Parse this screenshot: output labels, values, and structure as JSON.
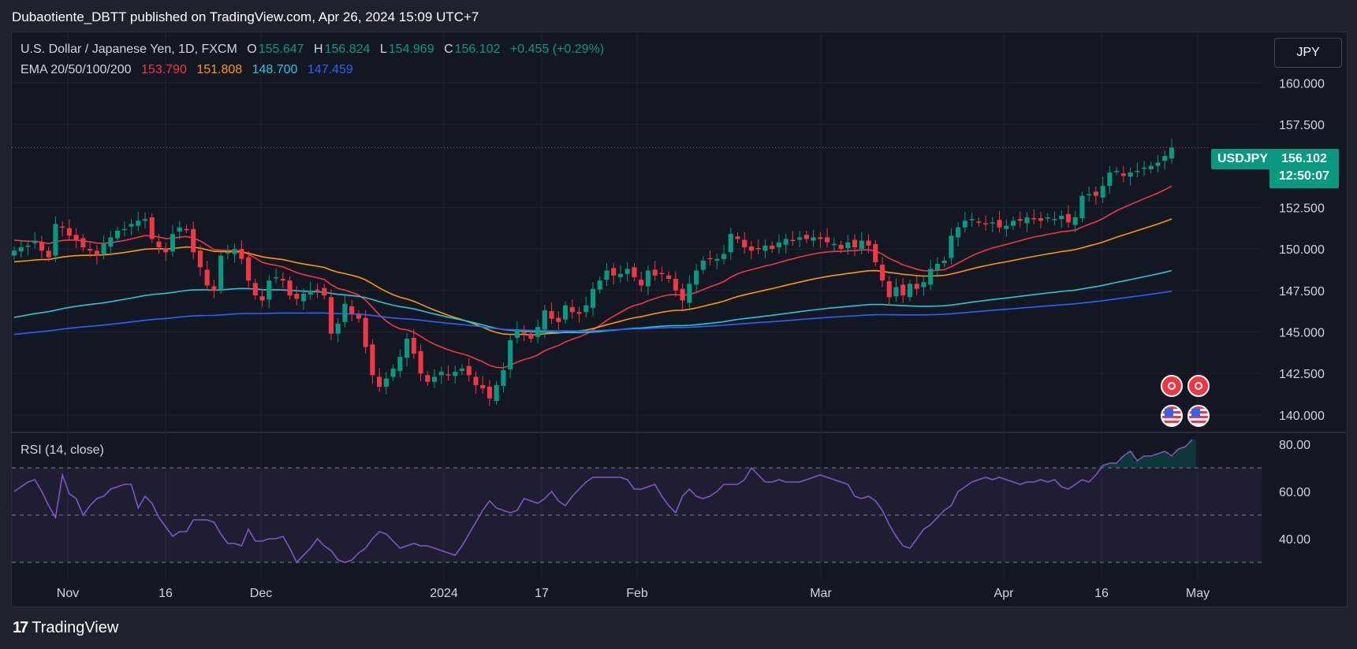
{
  "header": {
    "text": "Dubaotiente_DBTT published on TradingView.com, Apr 26, 2024 15:09 UTC+7"
  },
  "legend": {
    "title": "U.S. Dollar / Japanese Yen, 1D, FXCM",
    "o_label": "O",
    "o_value": "155.647",
    "h_label": "H",
    "h_value": "156.824",
    "l_label": "L",
    "l_value": "154.969",
    "c_label": "C",
    "c_value": "156.102",
    "change": "+0.455 (+0.29%)",
    "ema_label": "EMA 20/50/100/200",
    "ema_values": [
      "153.790",
      "151.808",
      "148.700",
      "147.459"
    ]
  },
  "currency_button": "JPY",
  "price_badge": {
    "symbol": "USDJPY",
    "price": "156.102",
    "countdown": "12:50:07"
  },
  "rsi_legend": "RSI (14, close)",
  "footer": {
    "brand": "TradingView",
    "logo": "17"
  },
  "colors": {
    "up": "#089981",
    "down": "#f23645",
    "ema20": "#f23645",
    "ema50": "#ff9800",
    "ema100": "#26c6da",
    "ema200": "#2962ff",
    "rsi": "#7e57c2",
    "bg": "#131722"
  },
  "chart_data": [
    {
      "type": "candlestick",
      "title": "U.S. Dollar / Japanese Yen, 1D, FXCM",
      "ylim": [
        139.0,
        163.0
      ],
      "y_ticks": [
        "160.000",
        "157.500",
        "152.500",
        "150.000",
        "147.500",
        "145.000",
        "142.500",
        "140.000"
      ],
      "x_ticks": [
        "Nov",
        "16",
        "Dec",
        "2024",
        "17",
        "Feb",
        "Mar",
        "Apr",
        "16",
        "May"
      ],
      "grid": true,
      "last_price_line": 156.102,
      "closes": [
        149.9,
        150.1,
        150.2,
        150.5,
        149.9,
        149.5,
        151.5,
        151.3,
        150.8,
        150.5,
        150.1,
        149.9,
        149.6,
        150.3,
        150.7,
        151.1,
        151.2,
        151.5,
        151.7,
        151.8,
        150.6,
        150.1,
        149.8,
        150.9,
        151.3,
        151.2,
        149.8,
        148.9,
        147.8,
        147.5,
        149.6,
        149.8,
        150.0,
        149.4,
        148.1,
        147.2,
        146.9,
        148.1,
        148.3,
        148.1,
        147.2,
        147.0,
        147.3,
        147.5,
        147.5,
        147.2,
        144.9,
        145.5,
        146.7,
        146.1,
        145.8,
        144.1,
        142.4,
        141.7,
        142.2,
        142.8,
        143.5,
        144.6,
        143.7,
        142.5,
        142.0,
        142.3,
        142.6,
        142.4,
        142.6,
        142.8,
        142.4,
        141.8,
        141.6,
        141.0,
        141.8,
        142.7,
        144.5,
        145.1,
        144.9,
        144.6,
        145.3,
        146.3,
        145.8,
        145.6,
        146.6,
        146.2,
        146.1,
        146.6,
        147.6,
        148.1,
        148.7,
        148.4,
        148.5,
        148.8,
        148.3,
        147.8,
        148.7,
        148.4,
        148.5,
        148.2,
        147.5,
        146.9,
        147.9,
        148.7,
        149.3,
        149.4,
        149.4,
        149.7,
        150.9,
        150.6,
        150.1,
        149.9,
        150.0,
        150.2,
        150.0,
        150.4,
        150.6,
        150.5,
        150.7,
        150.6,
        150.7,
        150.6,
        150.4,
        150.3,
        150.0,
        150.4,
        150.1,
        150.5,
        150.2,
        149.2,
        148.1,
        147.1,
        147.7,
        147.2,
        147.9,
        147.6,
        148.0,
        148.8,
        149.1,
        149.3,
        150.8,
        151.3,
        151.7,
        151.8,
        151.6,
        151.5,
        151.6,
        151.3,
        151.4,
        151.7,
        151.7,
        151.9,
        151.8,
        151.7,
        151.9,
        151.8,
        152.0,
        151.6,
        151.9,
        153.2,
        153.3,
        153.2,
        153.8,
        154.6,
        154.7,
        154.4,
        154.6,
        154.7,
        154.9,
        155.0,
        155.2,
        155.6,
        156.1
      ],
      "series": [
        {
          "name": "EMA 20",
          "last": 153.79
        },
        {
          "name": "EMA 50",
          "last": 151.808
        },
        {
          "name": "EMA 100",
          "last": 148.7
        },
        {
          "name": "EMA 200",
          "last": 147.459
        }
      ]
    },
    {
      "type": "line",
      "title": "RSI (14, close)",
      "ylim": [
        23,
        84
      ],
      "y_ticks": [
        "80.00",
        "60.00",
        "40.00"
      ],
      "bands": [
        70,
        50,
        30
      ],
      "values": [
        60,
        62,
        64,
        65,
        60,
        54,
        49,
        67,
        59,
        57,
        50,
        54,
        57,
        58,
        61,
        62,
        63,
        63,
        53,
        58,
        55,
        49,
        45,
        41,
        43,
        43,
        48,
        48,
        48,
        47,
        42,
        38,
        38,
        37,
        44,
        39,
        39,
        40,
        40,
        41,
        36,
        30,
        33,
        36,
        40,
        37,
        35,
        31,
        30,
        31,
        34,
        36,
        40,
        43,
        42,
        39,
        36,
        37,
        38,
        37,
        37,
        36,
        35,
        34,
        33,
        37,
        42,
        47,
        52,
        56,
        53,
        52,
        51,
        52,
        57,
        56,
        55,
        57,
        60,
        56,
        54,
        58,
        61,
        64,
        66,
        66,
        66,
        66,
        66,
        65,
        61,
        61,
        62,
        63,
        58,
        54,
        51,
        58,
        61,
        58,
        57,
        58,
        60,
        63,
        63,
        63,
        65,
        70,
        67,
        64,
        64,
        65,
        64,
        64,
        64,
        65,
        66,
        67,
        66,
        65,
        64,
        63,
        58,
        57,
        58,
        56,
        52,
        46,
        41,
        37,
        36,
        40,
        44,
        46,
        49,
        52,
        54,
        60,
        62,
        64,
        65,
        66,
        65,
        66,
        65,
        64,
        63,
        64,
        64,
        65,
        64,
        65,
        62,
        61,
        63,
        65,
        64,
        67,
        71,
        72,
        72,
        75,
        77,
        73,
        75,
        75,
        76,
        77,
        75,
        78,
        79,
        82
      ]
    }
  ]
}
